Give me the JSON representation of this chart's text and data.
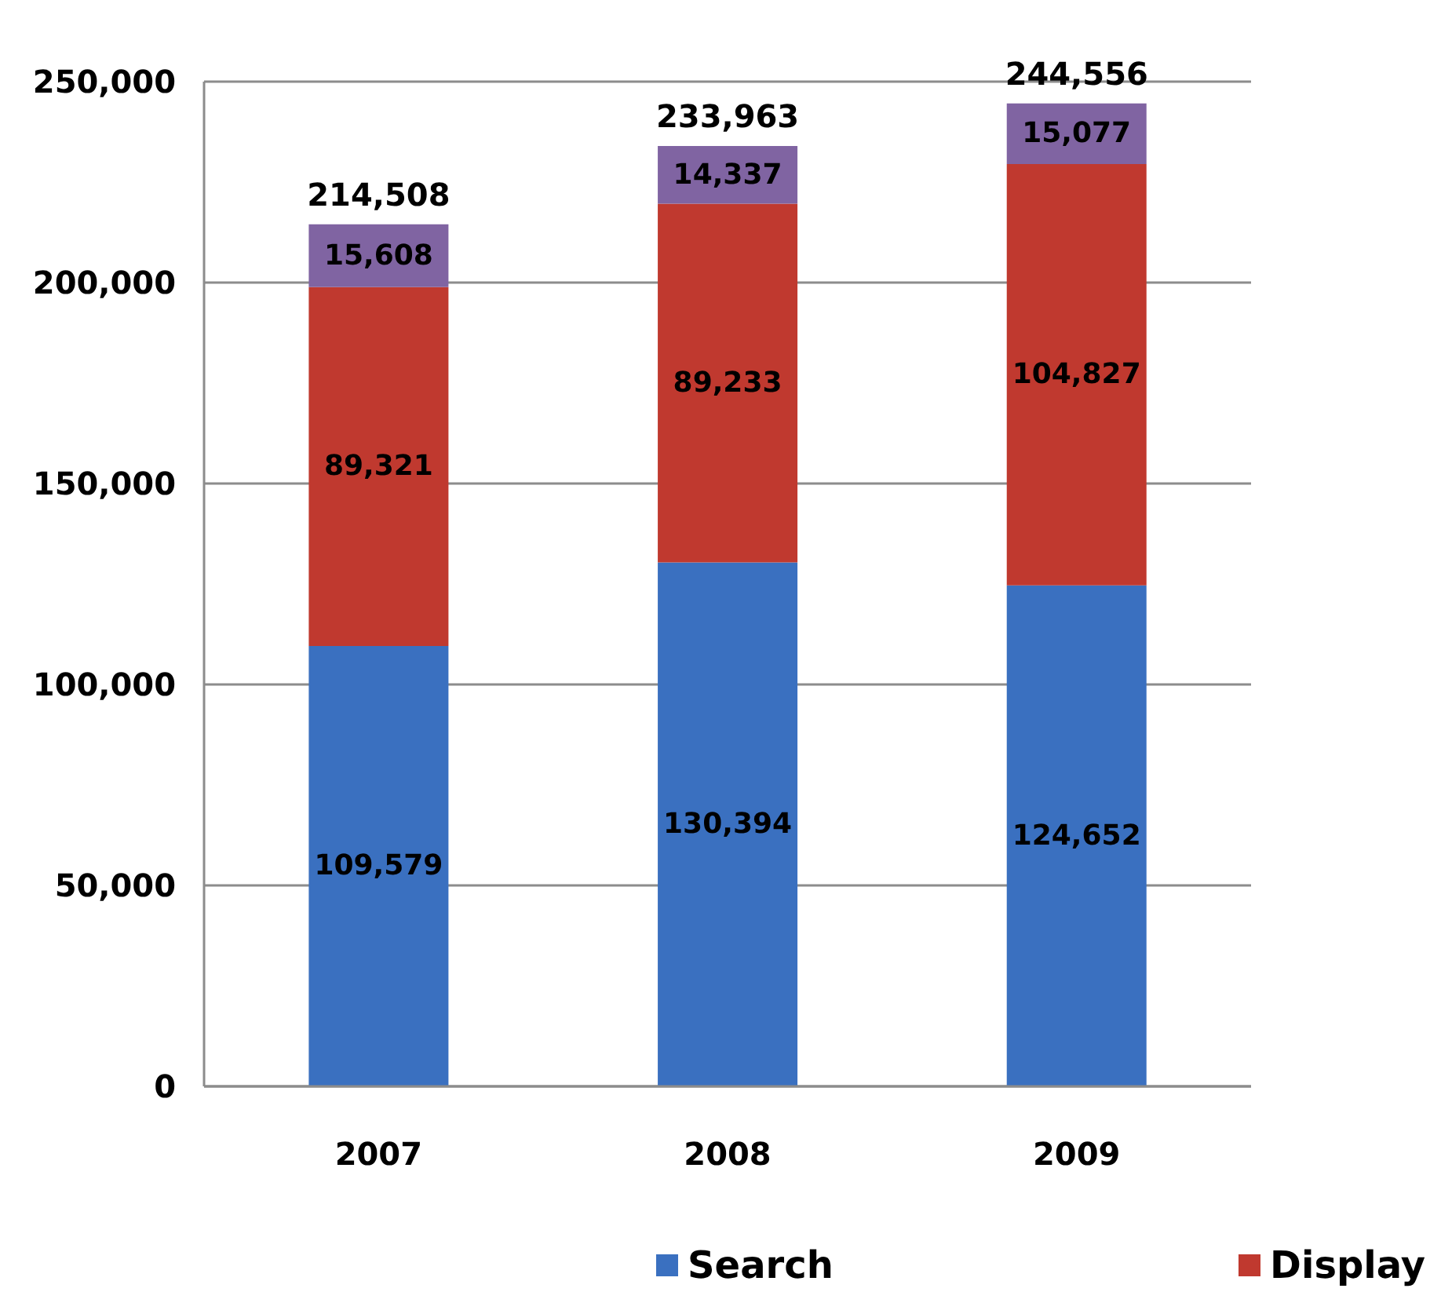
{
  "chart_data": {
    "type": "bar",
    "stacked": true,
    "categories": [
      "2007",
      "2008",
      "2009"
    ],
    "series": [
      {
        "name": "Search",
        "color": "#3a70c0",
        "values": [
          109579,
          130394,
          124652
        ],
        "value_labels": [
          "109,579",
          "130,394",
          "124,652"
        ]
      },
      {
        "name": "Display",
        "color": "#c0392f",
        "values": [
          89321,
          89233,
          104827
        ],
        "value_labels": [
          "89,321",
          "89,233",
          "104,827"
        ]
      },
      {
        "color": "#8064a2",
        "values": [
          15608,
          14337,
          15077
        ],
        "value_labels": [
          "15,608",
          "14,337",
          "15,077"
        ]
      }
    ],
    "ylim": [
      0,
      250000
    ],
    "yticks": [
      0,
      {
        "value": 50000,
        "label": "50,000"
      },
      {
        "value": 100000,
        "label": "100,000"
      },
      {
        "value": 150000,
        "label": "150,000"
      },
      {
        "value": 200000,
        "label": "200,000"
      },
      {
        "value": 250000,
        "label": "250,000"
      }
    ],
    "grid": "y",
    "legend": "bottom",
    "totals": [
      "214,508",
      "233,963",
      "244,556"
    ]
  }
}
